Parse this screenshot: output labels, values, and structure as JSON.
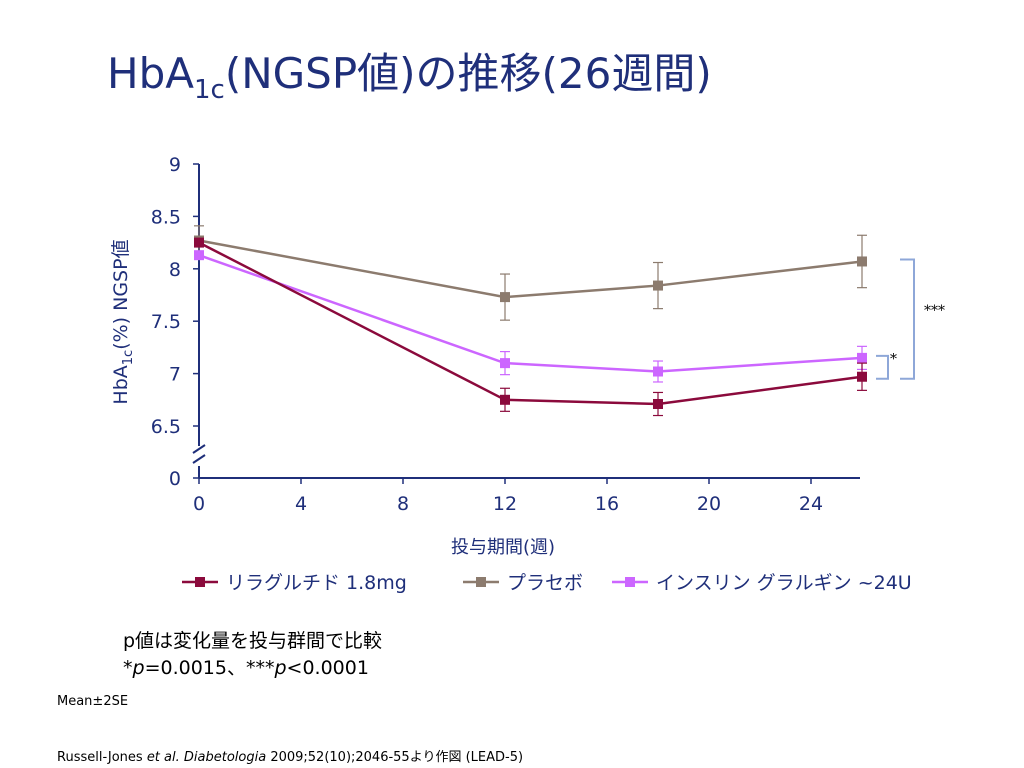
{
  "slide": {
    "title_main": "HbA",
    "title_sub": "1c",
    "title_rest": "(NGSP値)の推移(26週間)",
    "note_line1": "p値は変化量を投与群間で比較",
    "note_line2_star": "*",
    "note_line2_p1": "p",
    "note_line2_mid": "=0.0015、***",
    "note_line2_p2": "p",
    "note_line2_end": "<0.0001",
    "mean_label": "Mean±2SE",
    "citation_author": "Russell-Jones ",
    "citation_etal": "et al.",
    "citation_journal": " Diabetologia",
    "citation_rest": " 2009;52(10);2046-55より作図 (LEAD-5)"
  },
  "chart_data": {
    "type": "line",
    "x_ticks": [
      "0",
      "4",
      "8",
      "12",
      "16",
      "20",
      "24"
    ],
    "y_ticks": [
      "0",
      "6.5",
      "7",
      "7.5",
      "8",
      "8.5",
      "9"
    ],
    "xlabel": "投与期間(週)",
    "ylabel_main": "HbA",
    "ylabel_sub": "1c",
    "ylabel_rest": "(%) NGSP値",
    "x_range": [
      0,
      26
    ],
    "y_range": [
      6.5,
      9
    ],
    "y_axis_break": true,
    "grid": false,
    "legend_position": "bottom",
    "series": [
      {
        "name": "リラグルチド 1.8mg",
        "color": "#8b0a3c",
        "marker": "square",
        "points": [
          {
            "x": 0,
            "y": 8.25,
            "err": 0.0
          },
          {
            "x": 12,
            "y": 6.75,
            "err": 0.11
          },
          {
            "x": 18,
            "y": 6.71,
            "err": 0.11
          },
          {
            "x": 26,
            "y": 6.97,
            "err": 0.13
          }
        ]
      },
      {
        "name": "プラセボ",
        "color": "#8c7b6e",
        "marker": "square",
        "points": [
          {
            "x": 0,
            "y": 8.27,
            "err": 0.14
          },
          {
            "x": 12,
            "y": 7.73,
            "err": 0.22
          },
          {
            "x": 18,
            "y": 7.84,
            "err": 0.22
          },
          {
            "x": 26,
            "y": 8.07,
            "err": 0.25
          }
        ]
      },
      {
        "name": "インスリン グラルギン ~24U",
        "color": "#cc66ff",
        "marker": "square",
        "points": [
          {
            "x": 0,
            "y": 8.13,
            "err": 0.0
          },
          {
            "x": 12,
            "y": 7.1,
            "err": 0.11
          },
          {
            "x": 18,
            "y": 7.02,
            "err": 0.1
          },
          {
            "x": 26,
            "y": 7.15,
            "err": 0.11
          }
        ]
      }
    ],
    "significance": [
      {
        "label": "***",
        "between": [
          "プラセボ",
          "リラグルチド 1.8mg"
        ],
        "color": "#8ea7d8"
      },
      {
        "label": "*",
        "between": [
          "インスリン グラルギン ~24U",
          "リラグルチド 1.8mg"
        ],
        "color": "#8ea7d8"
      }
    ],
    "axis_color": "#1f2f7a"
  }
}
